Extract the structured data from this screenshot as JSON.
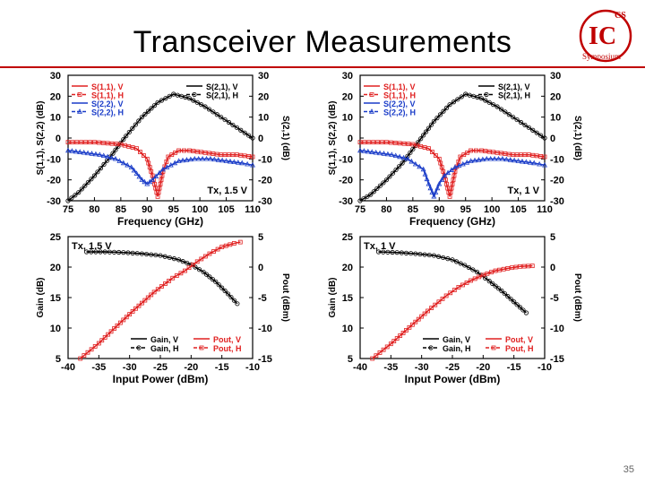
{
  "slide": {
    "title": "Transceiver Measurements",
    "page_number": "35",
    "logo_top": "CS",
    "logo_mid": "IC",
    "logo_arc": "Symposium",
    "accent": "#c00000"
  },
  "chart_data": [
    {
      "type": "line",
      "id": "s_param_15v",
      "annotation": "Tx, 1.5 V",
      "xlabel": "Frequency (GHz)",
      "ylabel_left": "S(1,1), S(2,2) (dB)",
      "ylabel_right": "S(2,1) (dB)",
      "xlim": [
        75,
        110
      ],
      "ylim_left": [
        -30,
        30
      ],
      "ylim_right": [
        -30,
        30
      ],
      "xticks": [
        75,
        80,
        85,
        90,
        95,
        100,
        105,
        110
      ],
      "yticks_left": [
        -30,
        -20,
        -10,
        0,
        10,
        20,
        30
      ],
      "yticks_right": [
        -30,
        -20,
        -10,
        0,
        10,
        20,
        30
      ],
      "legend_left": [
        "S(1,1), V",
        "S(1,1), H",
        "S(2,2), V",
        "S(2,2), H"
      ],
      "legend_right": [
        "S(2,1), V",
        "S(2,1), H"
      ],
      "series": [
        {
          "name": "S(2,1), V",
          "axis": "left",
          "color": "#000000",
          "dash": "",
          "x": [
            75,
            77,
            80,
            83,
            86,
            89,
            92,
            95,
            98,
            101,
            104,
            107,
            110
          ],
          "y": [
            -30,
            -26,
            -18,
            -9,
            1,
            10,
            17,
            21,
            19,
            15,
            10,
            5,
            0
          ]
        },
        {
          "name": "S(2,1), H",
          "axis": "left",
          "color": "#000000",
          "dash": "4,2",
          "marker": "circle",
          "x": [
            75,
            77,
            80,
            83,
            86,
            89,
            92,
            95,
            98,
            101,
            104,
            107,
            110
          ],
          "y": [
            -30,
            -26,
            -18,
            -9,
            1,
            10,
            17,
            21,
            19,
            15,
            10,
            5,
            0
          ]
        },
        {
          "name": "S(1,1), V",
          "axis": "left",
          "color": "#e02020",
          "dash": "",
          "x": [
            75,
            80,
            85,
            88,
            90,
            91,
            92,
            93,
            94,
            96,
            98,
            101,
            104,
            107,
            110
          ],
          "y": [
            -2,
            -2,
            -3,
            -5,
            -10,
            -18,
            -28,
            -16,
            -9,
            -6,
            -6,
            -7,
            -8,
            -8,
            -9
          ]
        },
        {
          "name": "S(1,1), H",
          "axis": "left",
          "color": "#e02020",
          "dash": "4,2",
          "marker": "square",
          "x": [
            75,
            80,
            85,
            88,
            90,
            91,
            92,
            93,
            94,
            96,
            98,
            101,
            104,
            107,
            110
          ],
          "y": [
            -2,
            -2,
            -3,
            -5,
            -10,
            -18,
            -28,
            -16,
            -9,
            -6,
            -6,
            -7,
            -8,
            -8,
            -9
          ]
        },
        {
          "name": "S(2,2), V",
          "axis": "left",
          "color": "#1a3cc8",
          "dash": "",
          "x": [
            75,
            78,
            81,
            84,
            87,
            89,
            90,
            91,
            93,
            96,
            99,
            102,
            105,
            108,
            110
          ],
          "y": [
            -6,
            -7,
            -8,
            -10,
            -14,
            -20,
            -22,
            -20,
            -15,
            -11,
            -10,
            -10,
            -11,
            -12,
            -13
          ]
        },
        {
          "name": "S(2,2), H",
          "axis": "left",
          "color": "#1a3cc8",
          "dash": "4,2",
          "marker": "triangle",
          "x": [
            75,
            78,
            81,
            84,
            87,
            89,
            90,
            91,
            93,
            96,
            99,
            102,
            105,
            108,
            110
          ],
          "y": [
            -6,
            -7,
            -8,
            -10,
            -14,
            -20,
            -22,
            -20,
            -15,
            -11,
            -10,
            -10,
            -11,
            -12,
            -13
          ]
        }
      ]
    },
    {
      "type": "line",
      "id": "s_param_1v",
      "annotation": "Tx, 1 V",
      "xlabel": "Frequency (GHz)",
      "ylabel_left": "S(1,1), S(2,2) (dB)",
      "ylabel_right": "S(2,1) (dB)",
      "xlim": [
        75,
        110
      ],
      "ylim_left": [
        -30,
        30
      ],
      "ylim_right": [
        -30,
        30
      ],
      "xticks": [
        75,
        80,
        85,
        90,
        95,
        100,
        105,
        110
      ],
      "yticks_left": [
        -30,
        -20,
        -10,
        0,
        10,
        20,
        30
      ],
      "yticks_right": [
        -30,
        -20,
        -10,
        0,
        10,
        20,
        30
      ],
      "legend_left": [
        "S(1,1), V",
        "S(1,1), H",
        "S(2,2), V",
        "S(2,2), H"
      ],
      "legend_right": [
        "S(2,1), V",
        "S(2,1), H"
      ],
      "series": [
        {
          "name": "S(2,1), V",
          "axis": "left",
          "color": "#000000",
          "dash": "",
          "x": [
            75,
            77,
            80,
            83,
            86,
            89,
            92,
            95,
            98,
            101,
            104,
            107,
            110
          ],
          "y": [
            -30,
            -27,
            -20,
            -12,
            -2,
            8,
            16,
            21,
            19,
            15,
            10,
            5,
            0
          ]
        },
        {
          "name": "S(2,1), H",
          "axis": "left",
          "color": "#000000",
          "dash": "4,2",
          "marker": "circle",
          "x": [
            75,
            77,
            80,
            83,
            86,
            89,
            92,
            95,
            98,
            101,
            104,
            107,
            110
          ],
          "y": [
            -30,
            -27,
            -20,
            -12,
            -2,
            8,
            16,
            21,
            19,
            15,
            10,
            5,
            0
          ]
        },
        {
          "name": "S(1,1), V",
          "axis": "left",
          "color": "#e02020",
          "dash": "",
          "x": [
            75,
            80,
            85,
            88,
            90,
            91,
            92,
            93,
            94,
            96,
            98,
            101,
            104,
            107,
            110
          ],
          "y": [
            -2,
            -2,
            -3,
            -5,
            -10,
            -18,
            -28,
            -16,
            -9,
            -6,
            -6,
            -7,
            -8,
            -8,
            -9
          ]
        },
        {
          "name": "S(1,1), H",
          "axis": "left",
          "color": "#e02020",
          "dash": "4,2",
          "marker": "square",
          "x": [
            75,
            80,
            85,
            88,
            90,
            91,
            92,
            93,
            94,
            96,
            98,
            101,
            104,
            107,
            110
          ],
          "y": [
            -2,
            -2,
            -3,
            -5,
            -10,
            -18,
            -28,
            -16,
            -9,
            -6,
            -6,
            -7,
            -8,
            -8,
            -9
          ]
        },
        {
          "name": "S(2,2), V",
          "axis": "left",
          "color": "#1a3cc8",
          "dash": "",
          "x": [
            75,
            78,
            81,
            84,
            87,
            88,
            89,
            90,
            91,
            93,
            96,
            99,
            102,
            105,
            108,
            110
          ],
          "y": [
            -6,
            -7,
            -8,
            -10,
            -15,
            -22,
            -28,
            -22,
            -18,
            -14,
            -11,
            -10,
            -10,
            -11,
            -12,
            -13
          ]
        },
        {
          "name": "S(2,2), H",
          "axis": "left",
          "color": "#1a3cc8",
          "dash": "4,2",
          "marker": "triangle",
          "x": [
            75,
            78,
            81,
            84,
            87,
            88,
            89,
            90,
            91,
            93,
            96,
            99,
            102,
            105,
            108,
            110
          ],
          "y": [
            -6,
            -7,
            -8,
            -10,
            -15,
            -22,
            -28,
            -22,
            -18,
            -14,
            -11,
            -10,
            -10,
            -11,
            -12,
            -13
          ]
        }
      ]
    },
    {
      "type": "line",
      "id": "power_15v",
      "annotation": "Tx, 1.5 V",
      "xlabel": "Input Power (dBm)",
      "ylabel_left": "Gain (dB)",
      "ylabel_right": "Pout (dBm)",
      "xlim": [
        -40,
        -10
      ],
      "ylim_left": [
        5,
        25
      ],
      "ylim_right": [
        -15,
        5
      ],
      "xticks": [
        -40,
        -35,
        -30,
        -25,
        -20,
        -15,
        -10
      ],
      "yticks_left": [
        5,
        10,
        15,
        20,
        25
      ],
      "yticks_right": [
        -15,
        -10,
        -5,
        0,
        5
      ],
      "legend_left": [
        "Gain, V",
        "Gain, H"
      ],
      "legend_right": [
        "Pout, V",
        "Pout, H"
      ],
      "series": [
        {
          "name": "Gain, V",
          "axis": "left",
          "color": "#000000",
          "dash": "",
          "x": [
            -37,
            -34,
            -31,
            -28,
            -25,
            -22,
            -20,
            -18,
            -16,
            -14,
            -12.5
          ],
          "y": [
            22.5,
            22.5,
            22.4,
            22.2,
            21.9,
            21.2,
            20.4,
            19.2,
            17.6,
            15.6,
            14
          ]
        },
        {
          "name": "Gain, H",
          "axis": "left",
          "color": "#000000",
          "dash": "4,2",
          "marker": "circle",
          "x": [
            -37,
            -34,
            -31,
            -28,
            -25,
            -22,
            -20,
            -18,
            -16,
            -14,
            -12.5
          ],
          "y": [
            22.5,
            22.5,
            22.4,
            22.2,
            21.9,
            21.2,
            20.4,
            19.2,
            17.6,
            15.6,
            14
          ]
        },
        {
          "name": "Pout, V",
          "axis": "right",
          "color": "#e02020",
          "dash": "",
          "x": [
            -38,
            -35,
            -32,
            -29,
            -26,
            -23,
            -21,
            -19,
            -17,
            -15,
            -13,
            -12
          ],
          "y": [
            -15,
            -12.5,
            -9.6,
            -6.8,
            -4.1,
            -1.8,
            -0.6,
            0.9,
            2.2,
            3.3,
            3.9,
            4.1
          ]
        },
        {
          "name": "Pout, H",
          "axis": "right",
          "color": "#e02020",
          "dash": "4,2",
          "marker": "square",
          "x": [
            -38,
            -35,
            -32,
            -29,
            -26,
            -23,
            -21,
            -19,
            -17,
            -15,
            -13,
            -12
          ],
          "y": [
            -15,
            -12.5,
            -9.6,
            -6.8,
            -4.1,
            -1.8,
            -0.6,
            0.9,
            2.2,
            3.3,
            3.9,
            4.1
          ]
        }
      ]
    },
    {
      "type": "line",
      "id": "power_1v",
      "annotation": "Tx, 1 V",
      "xlabel": "Input Power (dBm)",
      "ylabel_left": "Gain (dB)",
      "ylabel_right": "Pout (dBm)",
      "xlim": [
        -40,
        -10
      ],
      "ylim_left": [
        5,
        25
      ],
      "ylim_right": [
        -15,
        5
      ],
      "xticks": [
        -40,
        -35,
        -30,
        -25,
        -20,
        -15,
        -10
      ],
      "yticks_left": [
        5,
        10,
        15,
        20,
        25
      ],
      "yticks_right": [
        -15,
        -10,
        -5,
        0,
        5
      ],
      "legend_left": [
        "Gain, V",
        "Gain, H"
      ],
      "legend_right": [
        "Pout, V",
        "Pout, H"
      ],
      "series": [
        {
          "name": "Gain, V",
          "axis": "left",
          "color": "#000000",
          "dash": "",
          "x": [
            -37,
            -34,
            -31,
            -28,
            -25,
            -23,
            -21,
            -19,
            -17,
            -15,
            -13
          ],
          "y": [
            22.5,
            22.4,
            22.2,
            21.9,
            21.2,
            20.3,
            19.2,
            17.7,
            16.1,
            14.3,
            12.5
          ]
        },
        {
          "name": "Gain, H",
          "axis": "left",
          "color": "#000000",
          "dash": "4,2",
          "marker": "circle",
          "x": [
            -37,
            -34,
            -31,
            -28,
            -25,
            -23,
            -21,
            -19,
            -17,
            -15,
            -13
          ],
          "y": [
            22.5,
            22.4,
            22.2,
            21.9,
            21.2,
            20.3,
            19.2,
            17.7,
            16.1,
            14.3,
            12.5
          ]
        },
        {
          "name": "Pout, V",
          "axis": "right",
          "color": "#e02020",
          "dash": "",
          "x": [
            -38,
            -35,
            -32,
            -29,
            -26,
            -24,
            -22,
            -20,
            -18,
            -16,
            -14,
            -12
          ],
          "y": [
            -15,
            -12.6,
            -9.9,
            -7.2,
            -4.7,
            -3.3,
            -2.2,
            -1.3,
            -0.6,
            -0.2,
            0.1,
            0.2
          ]
        },
        {
          "name": "Pout, H",
          "axis": "right",
          "color": "#e02020",
          "dash": "4,2",
          "marker": "square",
          "x": [
            -38,
            -35,
            -32,
            -29,
            -26,
            -24,
            -22,
            -20,
            -18,
            -16,
            -14,
            -12
          ],
          "y": [
            -15,
            -12.6,
            -9.9,
            -7.2,
            -4.7,
            -3.3,
            -2.2,
            -1.3,
            -0.6,
            -0.2,
            0.1,
            0.2
          ]
        }
      ]
    }
  ]
}
